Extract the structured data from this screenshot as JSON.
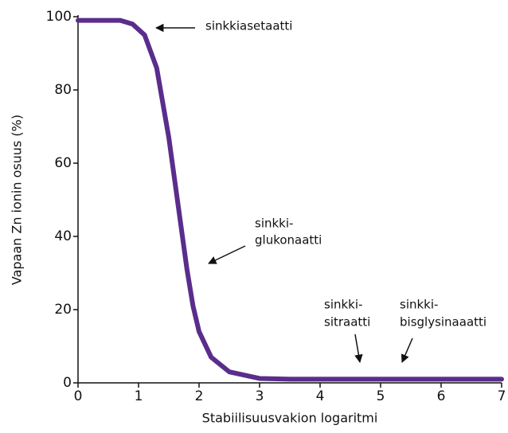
{
  "chart_data": {
    "type": "line",
    "xlabel": "Stabiilisuusvakion logaritmi",
    "ylabel": "Vapaan Zn ionin osuus (%)",
    "x": [
      0,
      0.5,
      0.7,
      0.9,
      1.1,
      1.3,
      1.5,
      1.6,
      1.7,
      1.8,
      1.9,
      2.0,
      2.2,
      2.5,
      3,
      3.5,
      4,
      5,
      6,
      7
    ],
    "series": [
      {
        "color": "#5a2d8c",
        "values": [
          99,
          99,
          99,
          98,
          95,
          86,
          67,
          55,
          43,
          31,
          21,
          14,
          7,
          3,
          1.2,
          1,
          1,
          1,
          1,
          1
        ]
      }
    ],
    "xlim": [
      0,
      7
    ],
    "xticks": [
      0,
      1,
      2,
      3,
      4,
      5,
      6,
      7
    ],
    "ylim": [
      0,
      100
    ],
    "yticks": [
      0,
      20,
      40,
      60,
      80,
      100
    ],
    "grid": false,
    "annotations": [
      {
        "lines": [
          "sinkkiasetaatti"
        ]
      },
      {
        "lines": [
          "sinkki-",
          "glukonaatti"
        ]
      },
      {
        "lines": [
          "sinkki-",
          "sitraatti"
        ]
      },
      {
        "lines": [
          "sinkki-",
          "bisglysinaaatti"
        ]
      }
    ]
  }
}
